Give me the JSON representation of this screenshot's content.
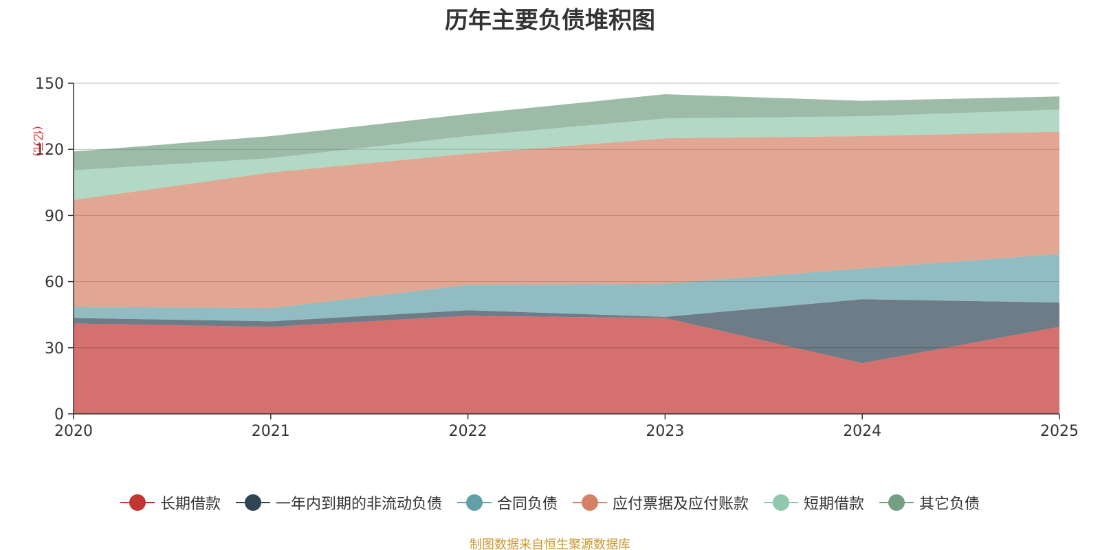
{
  "chart_data": {
    "type": "area",
    "stacked": true,
    "title": "历年主要负债堆积图",
    "ylabel": "(亿元)",
    "xlabel": "",
    "ylim": [
      0,
      150
    ],
    "yticks": [
      0,
      30,
      60,
      90,
      120,
      150
    ],
    "grid": true,
    "legend_position": "bottom",
    "categories": [
      "2020",
      "2021",
      "2022",
      "2023",
      "2024",
      "2025"
    ],
    "series": [
      {
        "name": "长期借款",
        "color": "#c23531",
        "values": [
          41,
          39.5,
          44.5,
          43.5,
          23,
          39.5
        ]
      },
      {
        "name": "一年内到期的非流动负债",
        "color": "#2f4554",
        "values": [
          2.5,
          2.5,
          2.5,
          0.5,
          29,
          11
        ]
      },
      {
        "name": "合同负债",
        "color": "#61a0a8",
        "values": [
          5,
          6,
          11.5,
          15,
          14,
          22
        ]
      },
      {
        "name": "应付票据及应付账款",
        "color": "#d48265",
        "values": [
          48.5,
          61.5,
          59.5,
          66,
          60,
          55.5
        ]
      },
      {
        "name": "短期借款",
        "color": "#91c7ae",
        "values": [
          13.5,
          6.5,
          8,
          9,
          9,
          10
        ]
      },
      {
        "name": "其它负债",
        "color": "#749f83",
        "values": [
          8.5,
          10,
          10,
          11,
          7,
          6
        ]
      }
    ]
  },
  "footer": {
    "note": "制图数据来自恒生聚源数据库"
  }
}
